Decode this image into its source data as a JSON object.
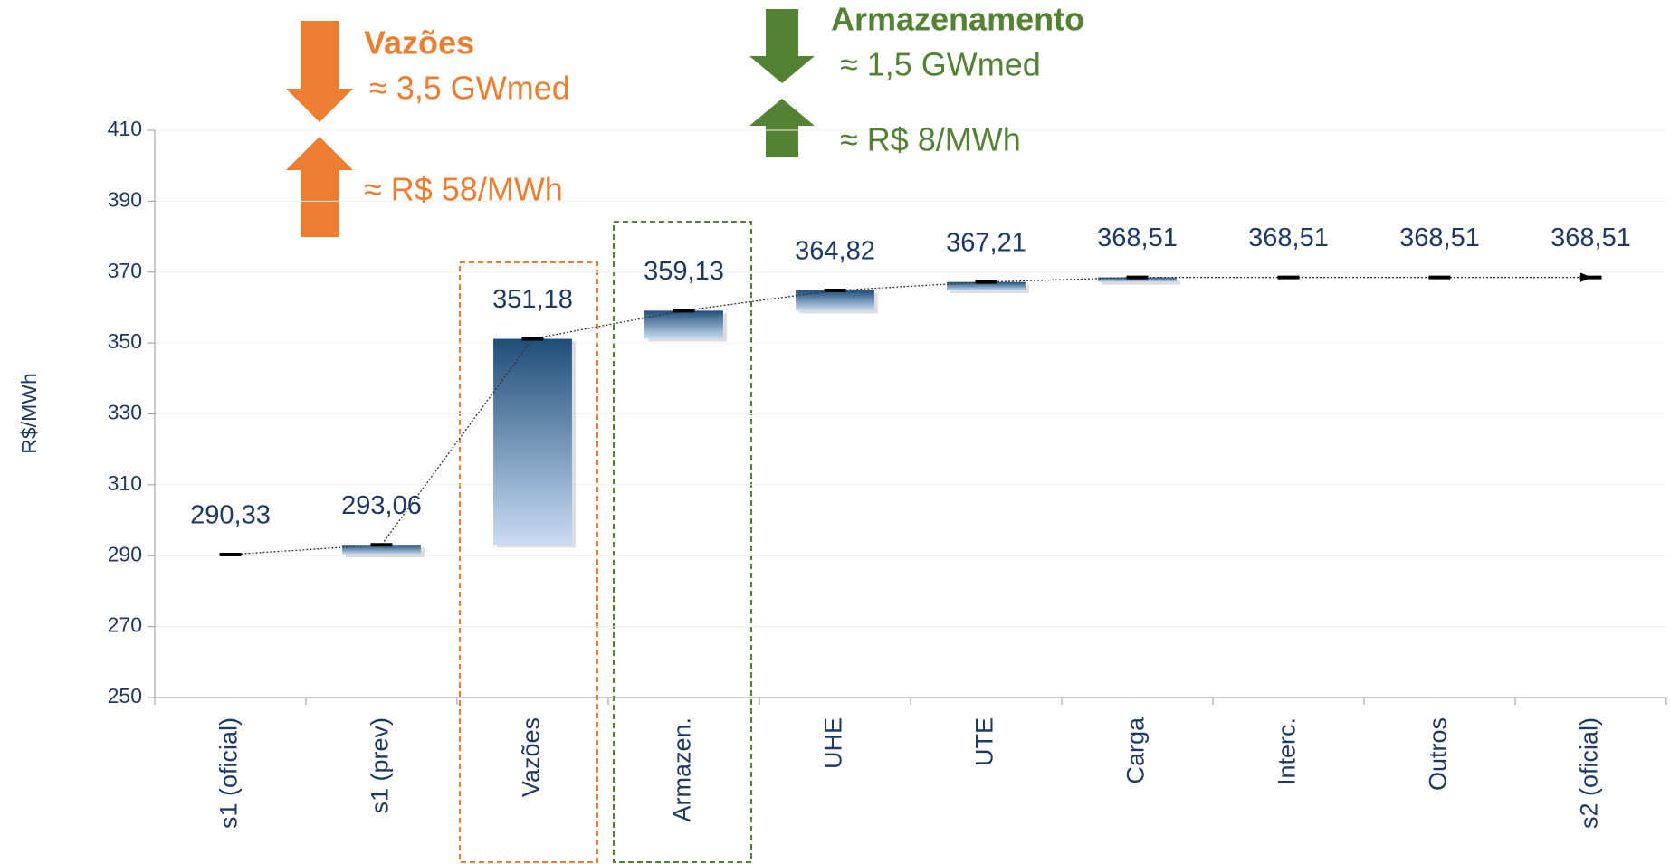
{
  "chart_data": {
    "type": "waterfall",
    "y_label": "R$/MWh",
    "categories": [
      "s1 (oficial)",
      "s1 (prev)",
      "Vazões",
      "Armazen.",
      "UHE",
      "UTE",
      "Carga",
      "Interc.",
      "Outros",
      "s2 (oficial)"
    ],
    "values": [
      290.33,
      293.06,
      351.18,
      359.13,
      364.82,
      367.21,
      368.51,
      368.51,
      368.51,
      368.51
    ],
    "value_labels": [
      "290,33",
      "293,06",
      "351,18",
      "359,13",
      "364,82",
      "367,21",
      "368,51",
      "368,51",
      "368,51",
      "368,51"
    ],
    "ylim": [
      250,
      410
    ],
    "yticks": [
      250,
      270,
      290,
      310,
      330,
      350,
      370,
      390,
      410
    ],
    "grid": true,
    "bar_color_top": "#1f4e79",
    "bar_color_bottom": "#c9dcf3",
    "annotations": [
      {
        "text": "Vazões",
        "color": "#ed7d31"
      },
      {
        "text": "≈ 3,5 GWmed",
        "color": "#ed7d31"
      },
      {
        "text": "≈ R$ 58/MWh",
        "color": "#ed7d31"
      },
      {
        "text": "Armazenamento",
        "color": "#548235"
      },
      {
        "text": "≈ 1,5 GWmed",
        "color": "#548235"
      },
      {
        "text": "≈ R$ 8/MWh",
        "color": "#548235"
      }
    ]
  }
}
